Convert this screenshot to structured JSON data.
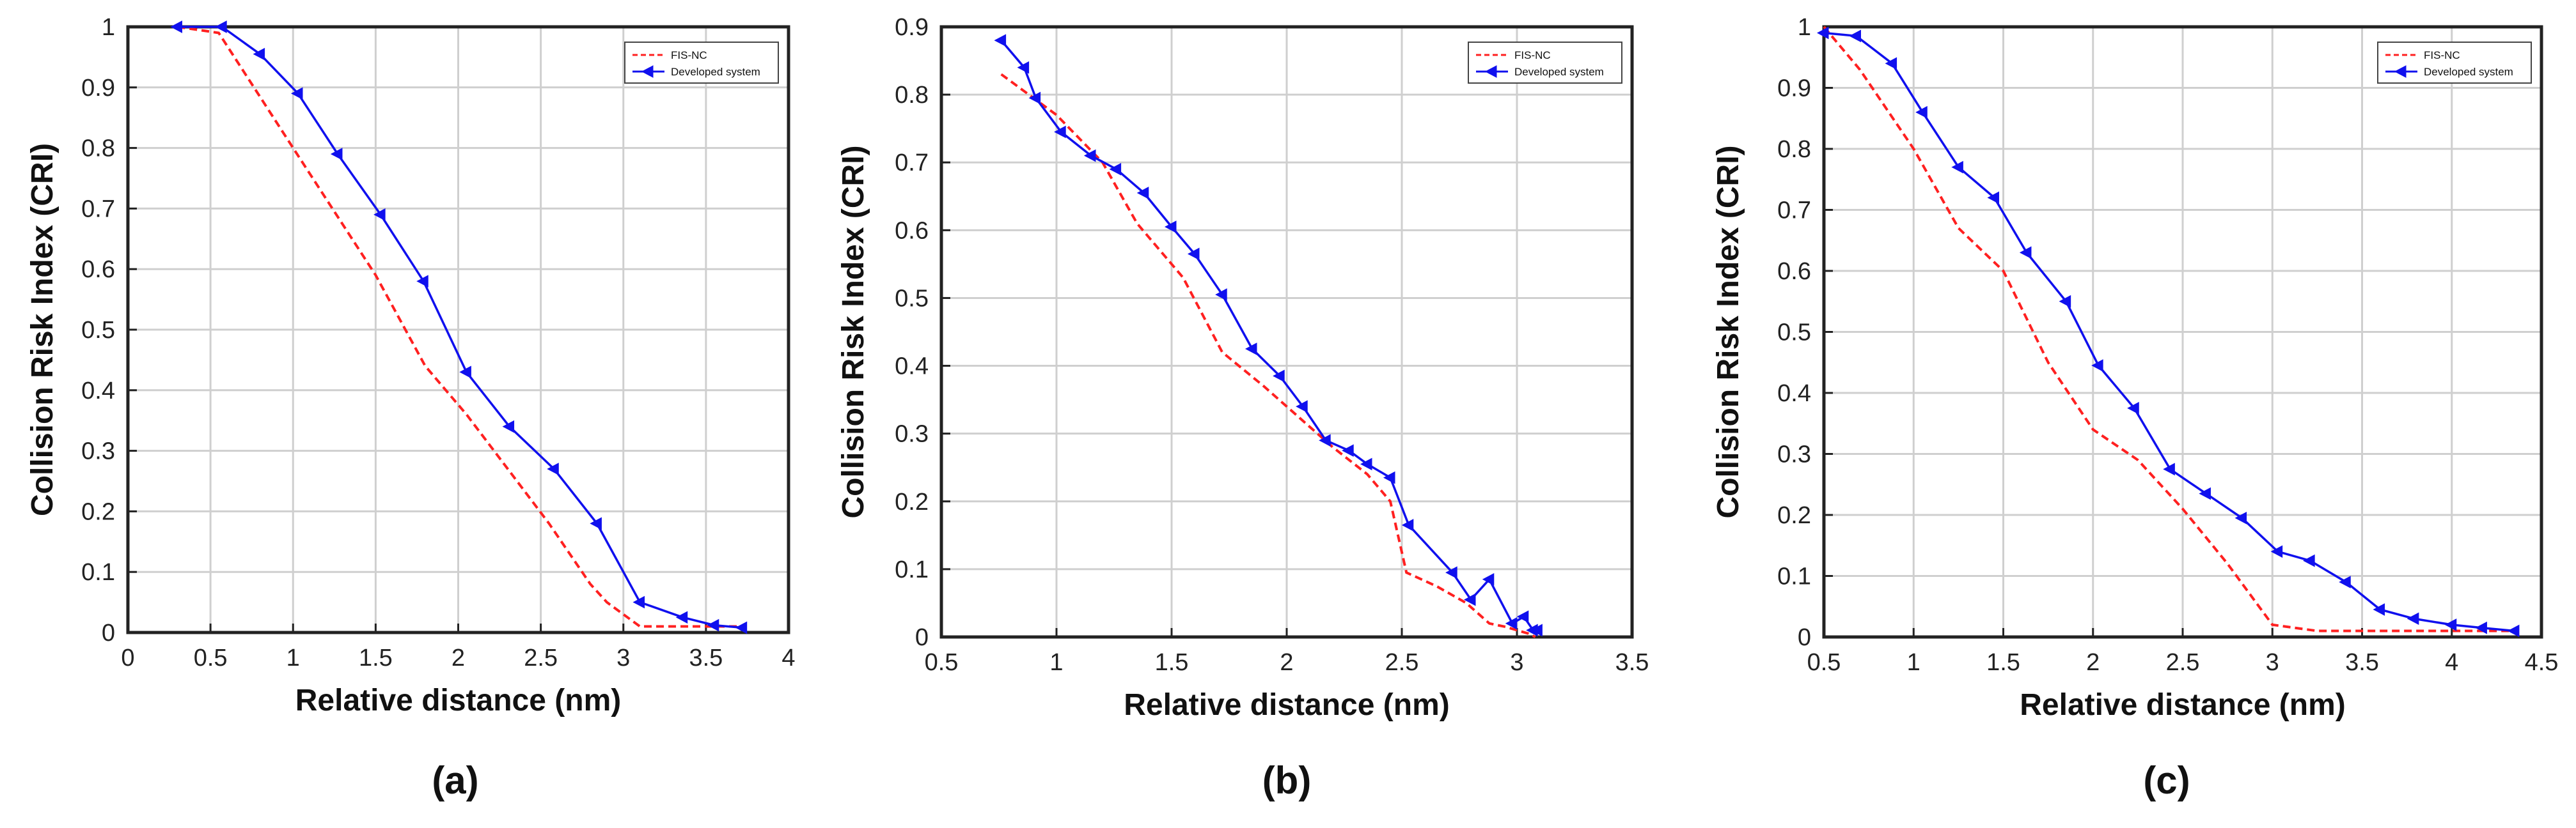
{
  "colors": {
    "fis_nc": "#ff2020",
    "developed": "#1010ee",
    "grid": "#cfcfcf",
    "axes": "#222222"
  },
  "chart_data": [
    {
      "type": "line",
      "panel_label": "(a)",
      "xlabel": "Relative distance (nm)",
      "ylabel": "Collision Risk Index (CRI)",
      "xlim": [
        0,
        4
      ],
      "ylim": [
        0,
        1
      ],
      "xticks": [
        0,
        0.5,
        1,
        1.5,
        2,
        2.5,
        3,
        3.5,
        4
      ],
      "xtick_labels": [
        "0",
        "0.5",
        "1",
        "1.5",
        "2",
        "2.5",
        "3",
        "3.5",
        "4"
      ],
      "yticks": [
        0,
        0.1,
        0.2,
        0.3,
        0.4,
        0.5,
        0.6,
        0.7,
        0.8,
        0.9,
        1
      ],
      "ytick_labels": [
        "0",
        "0.1",
        "0.2",
        "0.3",
        "0.4",
        "0.5",
        "0.6",
        "0.7",
        "0.8",
        "0.9",
        "1"
      ],
      "legend": [
        "FIS-NC",
        "Developed system"
      ],
      "legend_position": "top-right",
      "grid": true,
      "series": [
        {
          "name": "FIS-NC",
          "style": "dashed",
          "x": [
            0.3,
            0.55,
            1.0,
            1.5,
            1.8,
            2.05,
            2.3,
            2.55,
            2.8,
            2.9,
            3.1,
            3.5,
            3.7
          ],
          "y": [
            1.0,
            0.99,
            0.8,
            0.59,
            0.44,
            0.36,
            0.27,
            0.18,
            0.08,
            0.05,
            0.01,
            0.01,
            0.01
          ]
        },
        {
          "name": "Developed system",
          "style": "solid-marker",
          "x": [
            0.3,
            0.57,
            0.8,
            1.03,
            1.27,
            1.53,
            1.79,
            2.05,
            2.31,
            2.58,
            2.84,
            3.1,
            3.36,
            3.55,
            3.72
          ],
          "y": [
            1.0,
            1.0,
            0.955,
            0.89,
            0.79,
            0.69,
            0.58,
            0.43,
            0.34,
            0.27,
            0.18,
            0.05,
            0.025,
            0.012,
            0.008
          ]
        }
      ]
    },
    {
      "type": "line",
      "panel_label": "(b)",
      "xlabel": "Relative distance (nm)",
      "ylabel": "Collision Risk Index (CRI)",
      "xlim": [
        0.5,
        3.5
      ],
      "ylim": [
        0,
        0.9
      ],
      "xticks": [
        0.5,
        1,
        1.5,
        2,
        2.5,
        3,
        3.5
      ],
      "xtick_labels": [
        "0.5",
        "1",
        "1.5",
        "2",
        "2.5",
        "3",
        "3.5"
      ],
      "yticks": [
        0,
        0.1,
        0.2,
        0.3,
        0.4,
        0.5,
        0.6,
        0.7,
        0.8,
        0.9
      ],
      "ytick_labels": [
        "0",
        "0.1",
        "0.2",
        "0.3",
        "0.4",
        "0.5",
        "0.6",
        "0.7",
        "0.8",
        "0.9"
      ],
      "legend": [
        "FIS-NC",
        "Developed system"
      ],
      "legend_position": "top-right",
      "grid": true,
      "series": [
        {
          "name": "FIS-NC",
          "style": "dashed",
          "x": [
            0.76,
            1.0,
            1.2,
            1.35,
            1.55,
            1.72,
            1.9,
            2.1,
            2.2,
            2.35,
            2.45,
            2.52,
            2.65,
            2.78,
            2.88,
            2.95,
            3.05,
            3.08
          ],
          "y": [
            0.83,
            0.77,
            0.7,
            0.61,
            0.53,
            0.42,
            0.37,
            0.31,
            0.28,
            0.24,
            0.2,
            0.095,
            0.075,
            0.05,
            0.02,
            0.015,
            0.005,
            0.0
          ]
        },
        {
          "name": "Developed system",
          "style": "solid-marker",
          "x": [
            0.76,
            0.86,
            0.91,
            1.02,
            1.15,
            1.26,
            1.38,
            1.5,
            1.6,
            1.72,
            1.85,
            1.97,
            2.07,
            2.17,
            2.27,
            2.35,
            2.45,
            2.53,
            2.72,
            2.8,
            2.88,
            2.98,
            3.03,
            3.07,
            3.09
          ],
          "y": [
            0.88,
            0.84,
            0.795,
            0.745,
            0.71,
            0.69,
            0.655,
            0.605,
            0.565,
            0.505,
            0.425,
            0.385,
            0.34,
            0.29,
            0.275,
            0.255,
            0.235,
            0.165,
            0.095,
            0.055,
            0.085,
            0.02,
            0.03,
            0.01,
            0.01
          ]
        }
      ]
    },
    {
      "type": "line",
      "panel_label": "(c)",
      "xlabel": "Relative distance (nm)",
      "ylabel": "Collision Risk Index (CRI)",
      "xlim": [
        0.5,
        4.5
      ],
      "ylim": [
        0,
        1
      ],
      "xticks": [
        0.5,
        1,
        1.5,
        2,
        2.5,
        3,
        3.5,
        4,
        4.5
      ],
      "xtick_labels": [
        "0.5",
        "1",
        "1.5",
        "2",
        "2.5",
        "3",
        "3.5",
        "4",
        "4.5"
      ],
      "yticks": [
        0,
        0.1,
        0.2,
        0.3,
        0.4,
        0.5,
        0.6,
        0.7,
        0.8,
        0.9,
        1
      ],
      "ytick_labels": [
        "0",
        "0.1",
        "0.2",
        "0.3",
        "0.4",
        "0.5",
        "0.6",
        "0.7",
        "0.8",
        "0.9",
        "1"
      ],
      "legend": [
        "FIS-NC",
        "Developed system"
      ],
      "legend_position": "top-right",
      "grid": true,
      "series": [
        {
          "name": "FIS-NC",
          "style": "dashed",
          "x": [
            0.5,
            0.7,
            1.0,
            1.25,
            1.5,
            1.75,
            2.0,
            2.25,
            2.5,
            2.75,
            3.0,
            3.25,
            3.5,
            3.75,
            4.0,
            4.35
          ],
          "y": [
            1.0,
            0.93,
            0.8,
            0.67,
            0.6,
            0.45,
            0.34,
            0.29,
            0.21,
            0.12,
            0.02,
            0.01,
            0.01,
            0.01,
            0.01,
            0.01
          ]
        },
        {
          "name": "Developed system",
          "style": "solid-marker",
          "x": [
            0.5,
            0.68,
            0.88,
            1.05,
            1.25,
            1.45,
            1.63,
            1.85,
            2.03,
            2.23,
            2.43,
            2.63,
            2.83,
            3.03,
            3.21,
            3.41,
            3.6,
            3.79,
            4.0,
            4.17,
            4.35
          ],
          "y": [
            0.99,
            0.985,
            0.94,
            0.86,
            0.77,
            0.72,
            0.63,
            0.55,
            0.445,
            0.375,
            0.275,
            0.235,
            0.195,
            0.14,
            0.125,
            0.09,
            0.045,
            0.03,
            0.02,
            0.015,
            0.01
          ]
        }
      ]
    }
  ]
}
